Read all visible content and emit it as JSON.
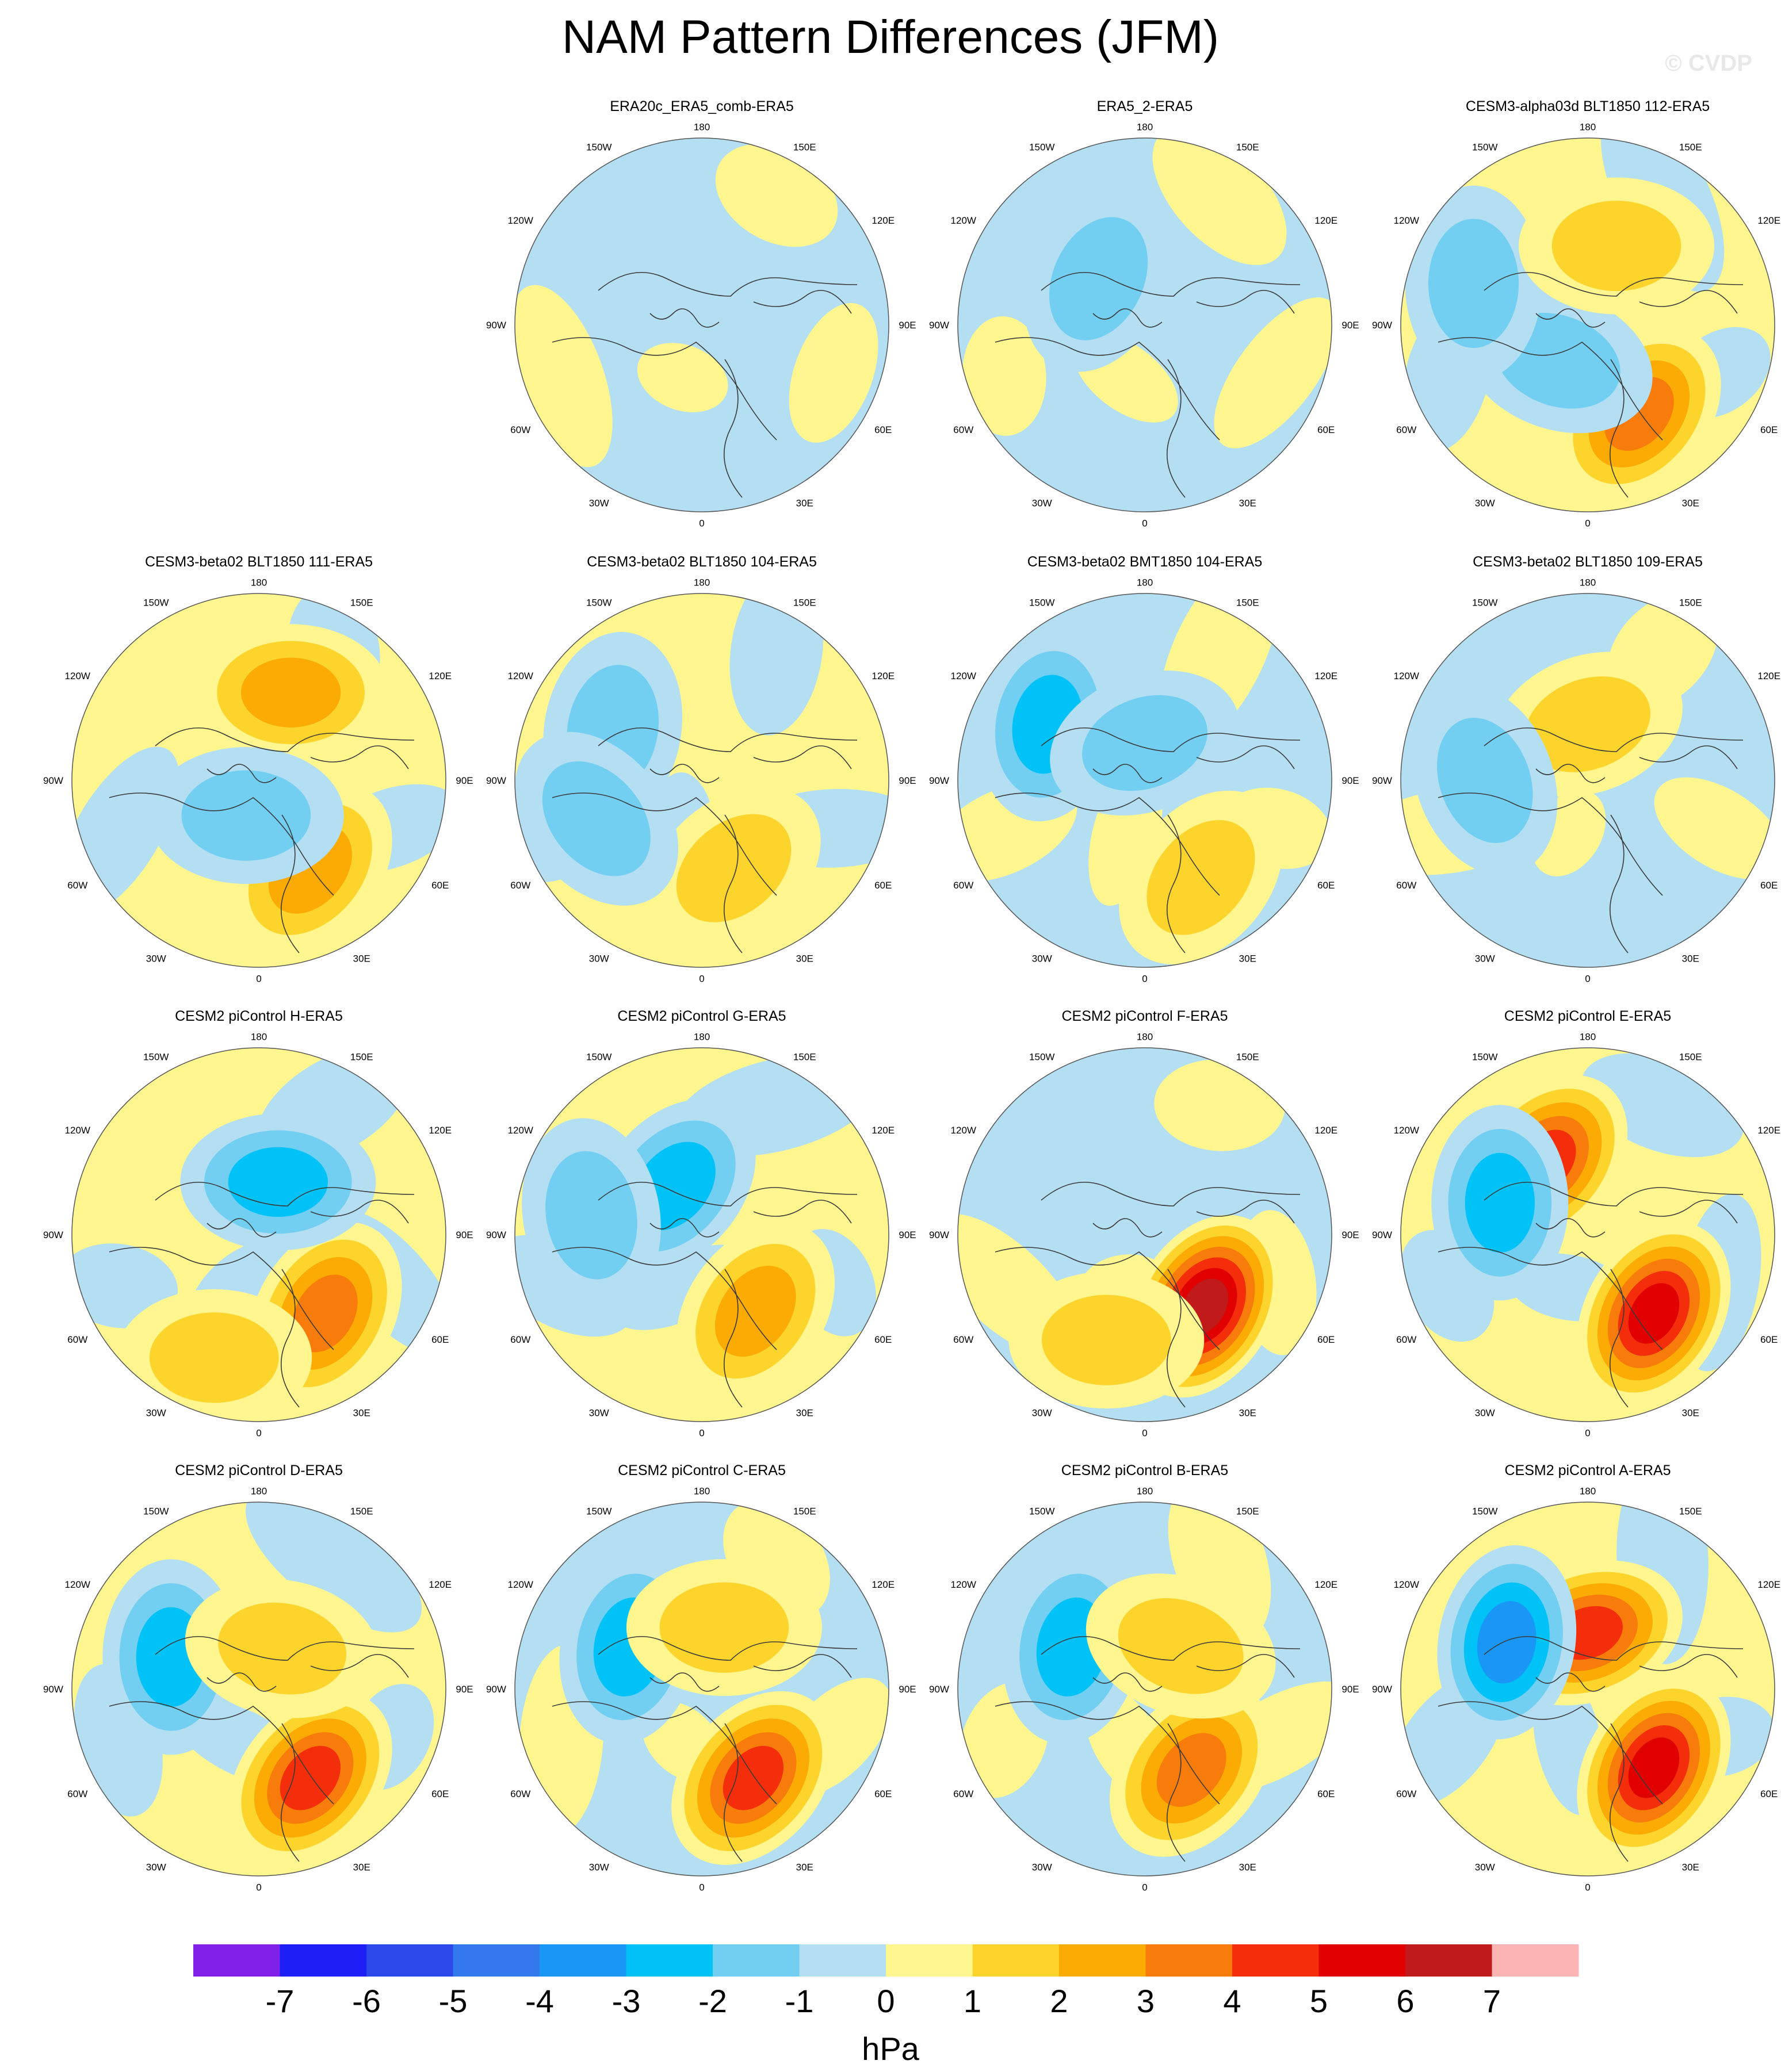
{
  "title": "NAM Pattern Differences (JFM)",
  "credit": "© CVDP",
  "units": "hPa",
  "colors": {
    "levels": [
      "#8020e8",
      "#1e1ef6",
      "#2c48ea",
      "#3478ee",
      "#1a96f6",
      "#00c2f6",
      "#72cff2",
      "#b4def2",
      "#fff68f",
      "#fcd42c",
      "#fcaa04",
      "#f87c0c",
      "#f42e0a",
      "#e00000",
      "#c01a1a",
      "#fcb4b4"
    ],
    "coast": "#3a3a3a",
    "border": "#555555"
  },
  "colorbar_labels": [
    "-7",
    "-6",
    "-5",
    "-4",
    "-3",
    "-2",
    "-1",
    "0",
    "1",
    "2",
    "3",
    "4",
    "5",
    "6",
    "7"
  ],
  "lon_labels": {
    "top": "180",
    "left": "90W",
    "right": "90E",
    "bottom": "0",
    "ul": "150W",
    "ur": "150E",
    "ul2": "120W",
    "ur2": "120E",
    "ll2": "60W",
    "lr2": "60E",
    "ll": "30W",
    "lr": "30E"
  },
  "panels": [
    {
      "title": "ERA20c_ERA5_comb-ERA5",
      "base": 0,
      "blobs": []
    },
    {
      "title": "ERA5_2-ERA5",
      "base": 0,
      "blobs": [
        {
          "a": 315,
          "r": 0.35,
          "v": -2
        }
      ]
    },
    {
      "title": "CESM3-alpha03d BLT1850 112-ERA5",
      "base": 1,
      "blobs": [
        {
          "a": 150,
          "r": 0.55,
          "v": 4
        },
        {
          "a": 220,
          "r": 0.25,
          "v": -2
        },
        {
          "a": 290,
          "r": 0.65,
          "v": -2
        },
        {
          "a": 20,
          "r": 0.45,
          "v": 2
        }
      ]
    },
    {
      "title": "CESM3-beta02 BLT1850 111-ERA5",
      "base": 1,
      "blobs": [
        {
          "a": 150,
          "r": 0.55,
          "v": 3
        },
        {
          "a": 20,
          "r": 0.5,
          "v": 3
        },
        {
          "a": 200,
          "r": 0.2,
          "v": -2
        }
      ]
    },
    {
      "title": "CESM3-beta02 BLT1850 104-ERA5",
      "base": 1,
      "blobs": [
        {
          "a": 160,
          "r": 0.5,
          "v": 2
        },
        {
          "a": 300,
          "r": 0.55,
          "v": -2
        },
        {
          "a": 250,
          "r": 0.6,
          "v": -2
        }
      ]
    },
    {
      "title": "CESM3-beta02 BMT1850 104-ERA5",
      "base": 0,
      "blobs": [
        {
          "a": 300,
          "r": 0.6,
          "v": -3
        },
        {
          "a": 0,
          "r": 0.2,
          "v": -2
        },
        {
          "a": 150,
          "r": 0.6,
          "v": 2
        }
      ]
    },
    {
      "title": "CESM3-beta02 BLT1850 109-ERA5",
      "base": 0,
      "blobs": [
        {
          "a": 0,
          "r": 0.3,
          "v": 2
        },
        {
          "a": 270,
          "r": 0.55,
          "v": -2
        }
      ]
    },
    {
      "title": "CESM2 piControl H-ERA5",
      "base": 1,
      "blobs": [
        {
          "a": 140,
          "r": 0.55,
          "v": 4
        },
        {
          "a": 20,
          "r": 0.3,
          "v": -3
        },
        {
          "a": 200,
          "r": 0.7,
          "v": 2
        }
      ]
    },
    {
      "title": "CESM2 piControl G-ERA5",
      "base": 1,
      "blobs": [
        {
          "a": 145,
          "r": 0.5,
          "v": 3
        },
        {
          "a": 330,
          "r": 0.3,
          "v": -3
        },
        {
          "a": 280,
          "r": 0.6,
          "v": -2
        }
      ]
    },
    {
      "title": "CESM2 piControl F-ERA5",
      "base": 0,
      "blobs": [
        {
          "a": 140,
          "r": 0.5,
          "v": 7
        },
        {
          "a": 200,
          "r": 0.6,
          "v": 2
        }
      ]
    },
    {
      "title": "CESM2 piControl E-ERA5",
      "base": 1,
      "blobs": [
        {
          "a": 140,
          "r": 0.55,
          "v": 6
        },
        {
          "a": 330,
          "r": 0.45,
          "v": 5
        },
        {
          "a": 290,
          "r": 0.5,
          "v": -3
        }
      ]
    },
    {
      "title": "CESM2 piControl D-ERA5",
      "base": 1,
      "blobs": [
        {
          "a": 150,
          "r": 0.55,
          "v": 5
        },
        {
          "a": 290,
          "r": 0.5,
          "v": -3
        },
        {
          "a": 30,
          "r": 0.25,
          "v": 2
        }
      ]
    },
    {
      "title": "CESM2 piControl C-ERA5",
      "base": 0,
      "blobs": [
        {
          "a": 150,
          "r": 0.55,
          "v": 5
        },
        {
          "a": 300,
          "r": 0.45,
          "v": -3
        },
        {
          "a": 20,
          "r": 0.35,
          "v": 2
        }
      ]
    },
    {
      "title": "CESM2 piControl B-ERA5",
      "base": 0,
      "blobs": [
        {
          "a": 150,
          "r": 0.5,
          "v": 4
        },
        {
          "a": 300,
          "r": 0.45,
          "v": -3
        },
        {
          "a": 40,
          "r": 0.3,
          "v": 2
        }
      ]
    },
    {
      "title": "CESM2 piControl A-ERA5",
      "base": 1,
      "blobs": [
        {
          "a": 140,
          "r": 0.55,
          "v": 6
        },
        {
          "a": 0,
          "r": 0.3,
          "v": 5
        },
        {
          "a": 300,
          "r": 0.5,
          "v": -4
        }
      ]
    }
  ]
}
